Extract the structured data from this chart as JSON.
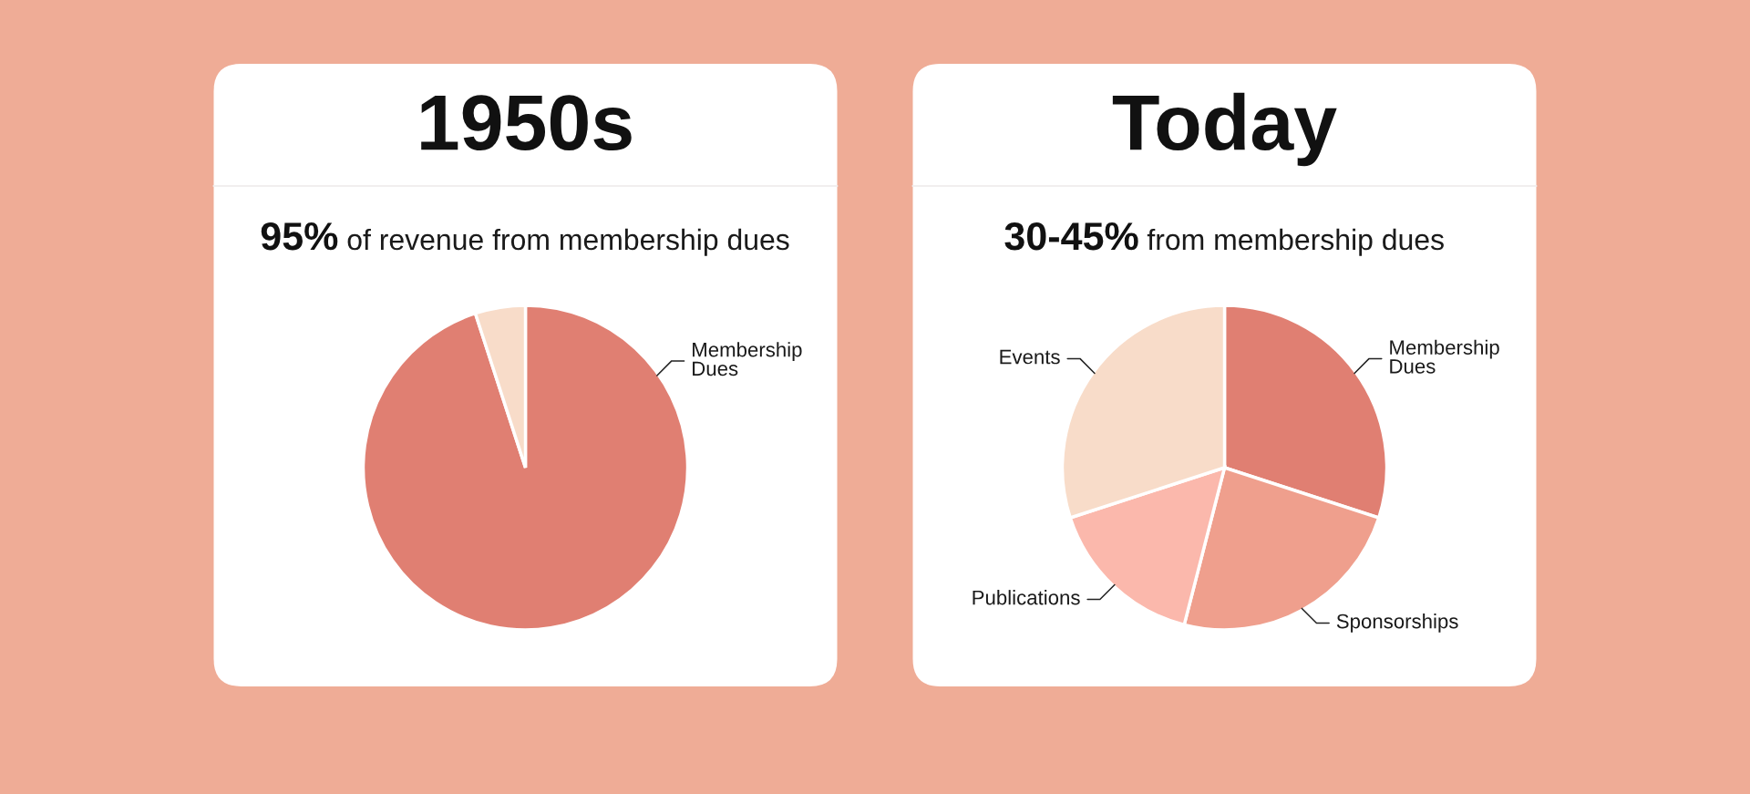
{
  "chart_data": [
    {
      "type": "pie",
      "title": "1950s",
      "subtitle": "95% of revenue from membership dues",
      "categories": [
        "Membership\nDues",
        null
      ],
      "values": [
        95,
        5
      ],
      "colors": [
        "#e07f72",
        "#f8dcc9"
      ]
    },
    {
      "type": "pie",
      "title": "Today",
      "subtitle": "30-45% from membership dues",
      "categories": [
        "Membership\nDues",
        "Sponsorships",
        "Publications",
        "Events"
      ],
      "values": [
        30,
        24,
        16,
        30
      ],
      "colors": [
        "#e07f72",
        "#ef9f8d",
        "#fbb8ac",
        "#f8dcc9"
      ]
    }
  ]
}
